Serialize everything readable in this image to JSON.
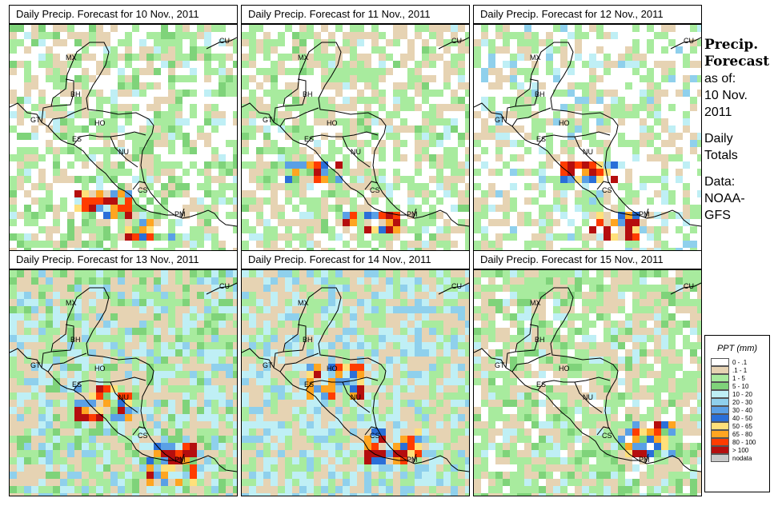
{
  "panels": [
    {
      "title": "Daily Precip. Forecast for  10 Nov., 2011"
    },
    {
      "title": "Daily Precip. Forecast for  11 Nov., 2011"
    },
    {
      "title": "Daily Precip. Forecast for  12 Nov., 2011"
    },
    {
      "title": "Daily Precip. Forecast for  13 Nov., 2011"
    },
    {
      "title": "Daily Precip. Forecast for  14 Nov., 2011"
    },
    {
      "title": "Daily Precip. Forecast for  15 Nov., 2011"
    }
  ],
  "map_labels": [
    "MX",
    "BH",
    "GT",
    "HO",
    "ES",
    "NU",
    "CS",
    "PM",
    "CU"
  ],
  "side": {
    "title_line1": "Precip.",
    "title_line2": "Forecast",
    "asof_line1": "as of:",
    "asof_line2": "10 Nov.",
    "asof_line3": "2011",
    "daily_line1": "Daily",
    "daily_line2": "Totals",
    "data_line1": "Data:",
    "data_line2": "NOAA-",
    "data_line3": "GFS"
  },
  "legend": {
    "title": "PPT (mm)",
    "items": [
      {
        "label": "0 - .1",
        "color": "#ffffff"
      },
      {
        "label": ".1 - 1",
        "color": "#e6d3b3"
      },
      {
        "label": "1 - 5",
        "color": "#a8eb9e"
      },
      {
        "label": "5 - 10",
        "color": "#7fd37a"
      },
      {
        "label": "10 - 20",
        "color": "#bfeff5"
      },
      {
        "label": "20 - 30",
        "color": "#8fd0ec"
      },
      {
        "label": "30 - 40",
        "color": "#5aa0e6"
      },
      {
        "label": "40 - 50",
        "color": "#2a6fd8"
      },
      {
        "label": "50 - 65",
        "color": "#ffe07a"
      },
      {
        "label": "65 - 80",
        "color": "#ffa521"
      },
      {
        "label": "80 - 100",
        "color": "#ff3c00"
      },
      {
        "label": "> 100",
        "color": "#b50e0e"
      },
      {
        "label": "nodata",
        "color": "#c8c8c8"
      }
    ]
  }
}
